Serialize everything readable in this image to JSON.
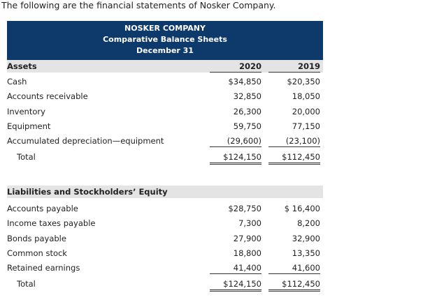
{
  "intro": "The following are the financial statements of Nosker Company.",
  "header": {
    "company": "NOSKER COMPANY",
    "title": "Comparative Balance Sheets",
    "date": "December 31"
  },
  "assets": {
    "heading": "Assets",
    "columns": [
      "2020",
      "2019"
    ],
    "rows": [
      [
        "Cash",
        "$34,850",
        "$20,350"
      ],
      [
        "Accounts receivable",
        "32,850",
        "18,050"
      ],
      [
        "Inventory",
        "26,300",
        "20,000"
      ],
      [
        "Equipment",
        "59,750",
        "77,150"
      ],
      [
        "Accumulated depreciation—equipment",
        "(29,600)",
        "(23,100)"
      ]
    ],
    "total": [
      "Total",
      "$124,150",
      "$112,450"
    ]
  },
  "liabilities": {
    "heading": "Liabilities and Stockholders’ Equity",
    "rows": [
      [
        "Accounts payable",
        "$28,750",
        "$ 16,400"
      ],
      [
        "Income taxes payable",
        "7,300",
        "8,200"
      ],
      [
        "Bonds payable",
        "27,900",
        "32,900"
      ],
      [
        "Common stock",
        "18,800",
        "13,350"
      ],
      [
        "Retained earnings",
        "41,400",
        "41,600"
      ]
    ],
    "total": [
      "Total",
      "$124,150",
      "$112,450"
    ]
  }
}
